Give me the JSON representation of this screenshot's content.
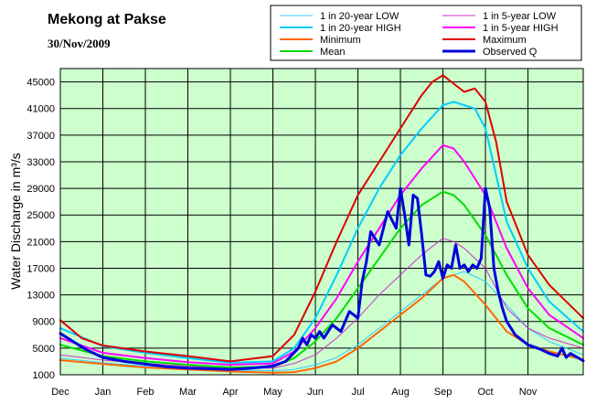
{
  "chart_data": {
    "type": "line",
    "title": "Mekong at Pakse",
    "subtitle": "30/Nov/2009",
    "ylabel": "Water Discharge in m³/s",
    "xlabel": "",
    "ylim": [
      1000,
      47000
    ],
    "yticks": [
      1000,
      5000,
      9000,
      13000,
      17000,
      21000,
      25000,
      29000,
      33000,
      37000,
      41000,
      45000
    ],
    "ytick_labels": [
      "1000",
      "5000",
      "9000",
      "13000",
      "17000",
      "21000",
      "25000",
      "29000",
      "33000",
      "37000",
      "41000",
      "45000"
    ],
    "xlim": [
      0,
      12.3
    ],
    "x_months": [
      "Dec",
      "Jan",
      "Feb",
      "Mar",
      "Apr",
      "May",
      "Jun",
      "Jul",
      "Aug",
      "Sep",
      "Oct",
      "Nov"
    ],
    "x_unit": "months since 1 Dec",
    "grid": true,
    "plot_background": "#ccffcc",
    "legend_position": "top-right",
    "series": [
      {
        "name": "1 in 20-year LOW",
        "color": "#33ccff",
        "width": 1,
        "x": [
          0,
          1,
          2,
          3,
          4,
          5,
          5.5,
          6,
          6.5,
          7,
          7.5,
          8,
          8.5,
          9,
          9.5,
          10,
          10.5,
          11,
          11.5,
          12.3
        ],
        "y": [
          3500,
          2800,
          2300,
          2000,
          1700,
          1600,
          1800,
          2500,
          3600,
          5500,
          8000,
          10500,
          13000,
          15500,
          16500,
          15000,
          11500,
          8000,
          6000,
          4000
        ]
      },
      {
        "name": "1 in 20-year HIGH",
        "color": "#00ccff",
        "width": 2,
        "x": [
          0,
          1,
          2,
          3,
          4,
          5,
          5.5,
          6,
          6.5,
          7,
          7.5,
          8,
          8.5,
          9,
          9.25,
          9.5,
          9.75,
          10,
          10.25,
          10.5,
          11,
          11.5,
          12.3
        ],
        "y": [
          8000,
          5300,
          4300,
          3500,
          2800,
          3000,
          5000,
          9500,
          16000,
          23000,
          29000,
          34000,
          38000,
          41500,
          42000,
          41500,
          41000,
          38000,
          31000,
          24000,
          17000,
          12000,
          7500
        ]
      },
      {
        "name": "1 in 5-year LOW",
        "color": "#cc33cc",
        "width": 1,
        "x": [
          0,
          1,
          2,
          3,
          4,
          5,
          5.5,
          6,
          6.5,
          7,
          7.5,
          8,
          8.5,
          9,
          9.25,
          9.5,
          10,
          10.5,
          11,
          11.5,
          12.3
        ],
        "y": [
          4000,
          3200,
          2700,
          2300,
          2000,
          2000,
          2700,
          4000,
          6500,
          9500,
          13000,
          16000,
          19000,
          21500,
          21000,
          20000,
          17000,
          11000,
          8000,
          6500,
          5000
        ]
      },
      {
        "name": "1 in 5-year HIGH",
        "color": "#ff00ff",
        "width": 2,
        "x": [
          0,
          1,
          2,
          3,
          4,
          5,
          5.5,
          6,
          6.5,
          7,
          7.5,
          8,
          8.5,
          9,
          9.25,
          9.5,
          10,
          10.5,
          11,
          11.5,
          12.3
        ],
        "y": [
          6500,
          4300,
          3500,
          2900,
          2500,
          2700,
          4500,
          8000,
          12500,
          18000,
          23000,
          28000,
          32000,
          35500,
          35000,
          33000,
          28000,
          20000,
          14000,
          10000,
          6500
        ]
      },
      {
        "name": "Minimum",
        "color": "#ff6600",
        "width": 2,
        "x": [
          0,
          1,
          2,
          3,
          4,
          5,
          5.5,
          6,
          6.5,
          7,
          7.5,
          8,
          8.5,
          9,
          9.25,
          9.5,
          10,
          10.5,
          11,
          11.5,
          12.3
        ],
        "y": [
          3200,
          2600,
          2100,
          1800,
          1500,
          1300,
          1400,
          2000,
          3000,
          5000,
          7500,
          10000,
          12500,
          15500,
          16000,
          15000,
          11500,
          7500,
          5500,
          4500,
          3300
        ]
      },
      {
        "name": "Mean",
        "color": "#00dd00",
        "width": 2,
        "x": [
          0,
          1,
          2,
          3,
          4,
          5,
          5.5,
          6,
          6.5,
          7,
          7.5,
          8,
          8.5,
          9,
          9.25,
          9.5,
          10,
          10.5,
          11,
          11.5,
          12.3
        ],
        "y": [
          5500,
          3800,
          3000,
          2500,
          2100,
          2200,
          3500,
          6000,
          9500,
          14000,
          18500,
          23000,
          26500,
          28500,
          28000,
          26500,
          22000,
          16000,
          11000,
          8000,
          5500
        ]
      },
      {
        "name": "Maximum",
        "color": "#dd0000",
        "width": 2,
        "x": [
          0,
          0.5,
          1,
          2,
          3,
          4,
          5,
          5.5,
          6,
          6.5,
          7,
          7.5,
          8,
          8.5,
          8.75,
          9,
          9.2,
          9.5,
          9.75,
          10,
          10.25,
          10.5,
          11,
          11.5,
          12.3
        ],
        "y": [
          9200,
          6500,
          5400,
          4500,
          3800,
          3000,
          3800,
          7000,
          13500,
          21000,
          28000,
          33000,
          38000,
          43000,
          45000,
          46000,
          45000,
          43500,
          44000,
          42000,
          36000,
          27000,
          19000,
          14500,
          9500
        ]
      },
      {
        "name": "Observed Q",
        "color": "#0000dd",
        "width": 3,
        "x": [
          0,
          0.3,
          0.6,
          1,
          1.5,
          2,
          2.5,
          3,
          3.5,
          4,
          4.5,
          5,
          5.3,
          5.6,
          5.7,
          5.8,
          5.9,
          6,
          6.1,
          6.2,
          6.4,
          6.6,
          6.8,
          7,
          7.1,
          7.2,
          7.3,
          7.5,
          7.7,
          7.9,
          8,
          8.1,
          8.2,
          8.3,
          8.4,
          8.5,
          8.6,
          8.7,
          8.8,
          8.9,
          9,
          9.1,
          9.2,
          9.3,
          9.4,
          9.5,
          9.6,
          9.7,
          9.8,
          9.9,
          10,
          10.05,
          10.1,
          10.2,
          10.3,
          10.4,
          10.5,
          10.7,
          11,
          11.3,
          11.5,
          11.7,
          11.8,
          11.9,
          12,
          12.3
        ],
        "y": [
          7200,
          6000,
          4800,
          3600,
          3000,
          2600,
          2200,
          2000,
          1900,
          1800,
          2000,
          2300,
          3000,
          5000,
          6500,
          5500,
          7000,
          6500,
          7500,
          6500,
          8500,
          7500,
          10500,
          9500,
          15000,
          18000,
          22500,
          20500,
          25500,
          23000,
          29000,
          25000,
          20500,
          28000,
          27500,
          22000,
          16000,
          15800,
          16500,
          18000,
          15500,
          17500,
          17000,
          20500,
          17000,
          17500,
          16500,
          17500,
          17000,
          18500,
          29000,
          27500,
          26000,
          17000,
          13500,
          11000,
          9000,
          7000,
          5500,
          4800,
          4200,
          3800,
          5000,
          3600,
          4200,
          3100
        ]
      }
    ]
  }
}
